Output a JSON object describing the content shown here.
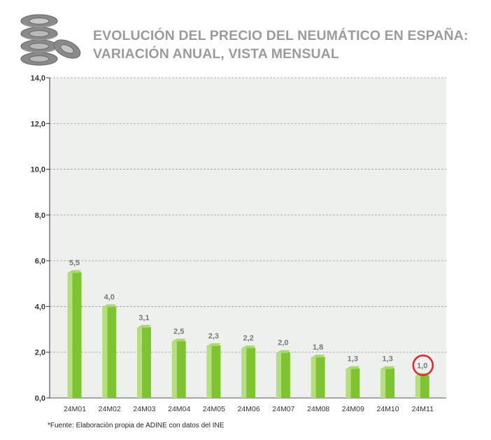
{
  "colors": {
    "bar_face": "#7ec431",
    "bar_light": "#b4e07b",
    "bar_top": "#a9d96c",
    "plot_bg": "#eef0ee",
    "grid": "#9a9a9a",
    "title": "#9b9b9b",
    "tick_text": "#333333",
    "label_text": "#777777",
    "highlight": "#e8212b"
  },
  "header": {
    "icon": "stacked-tires-icon",
    "title_line1": "EVOLUCIÓN DEL PRECIO DEL NEUMÁTICO EN ESPAÑA:",
    "title_line2": "VARIACIÓN ANUAL, VISTA MENSUAL"
  },
  "footnote": "*Fuente: Elaboración propia de ADINE con datos del INE",
  "chart_data": {
    "type": "bar",
    "categories": [
      "24M01",
      "24M02",
      "24M03",
      "24M04",
      "24M05",
      "24M06",
      "24M07",
      "24M08",
      "24M09",
      "24M10",
      "24M11"
    ],
    "values": [
      5.5,
      4.0,
      3.1,
      2.5,
      2.3,
      2.2,
      2.0,
      1.8,
      1.3,
      1.3,
      1.0
    ],
    "value_labels": [
      "5,5",
      "4,0",
      "3,1",
      "2,5",
      "2,3",
      "2,2",
      "2,0",
      "1,8",
      "1,3",
      "1,3",
      "1,0"
    ],
    "yticks": [
      0,
      2,
      4,
      6,
      8,
      10,
      12,
      14
    ],
    "ytick_labels": [
      "0,0",
      "2,0",
      "4,0",
      "6,0",
      "8,0",
      "10,0",
      "12,0",
      "14,0"
    ],
    "ylim": [
      0,
      14
    ],
    "grid": true,
    "highlighted_category": "24M11",
    "title": "EVOLUCIÓN DEL PRECIO DEL NEUMÁTICO EN ESPAÑA: VARIACIÓN ANUAL, VISTA MENSUAL",
    "xlabel": "",
    "ylabel": ""
  }
}
